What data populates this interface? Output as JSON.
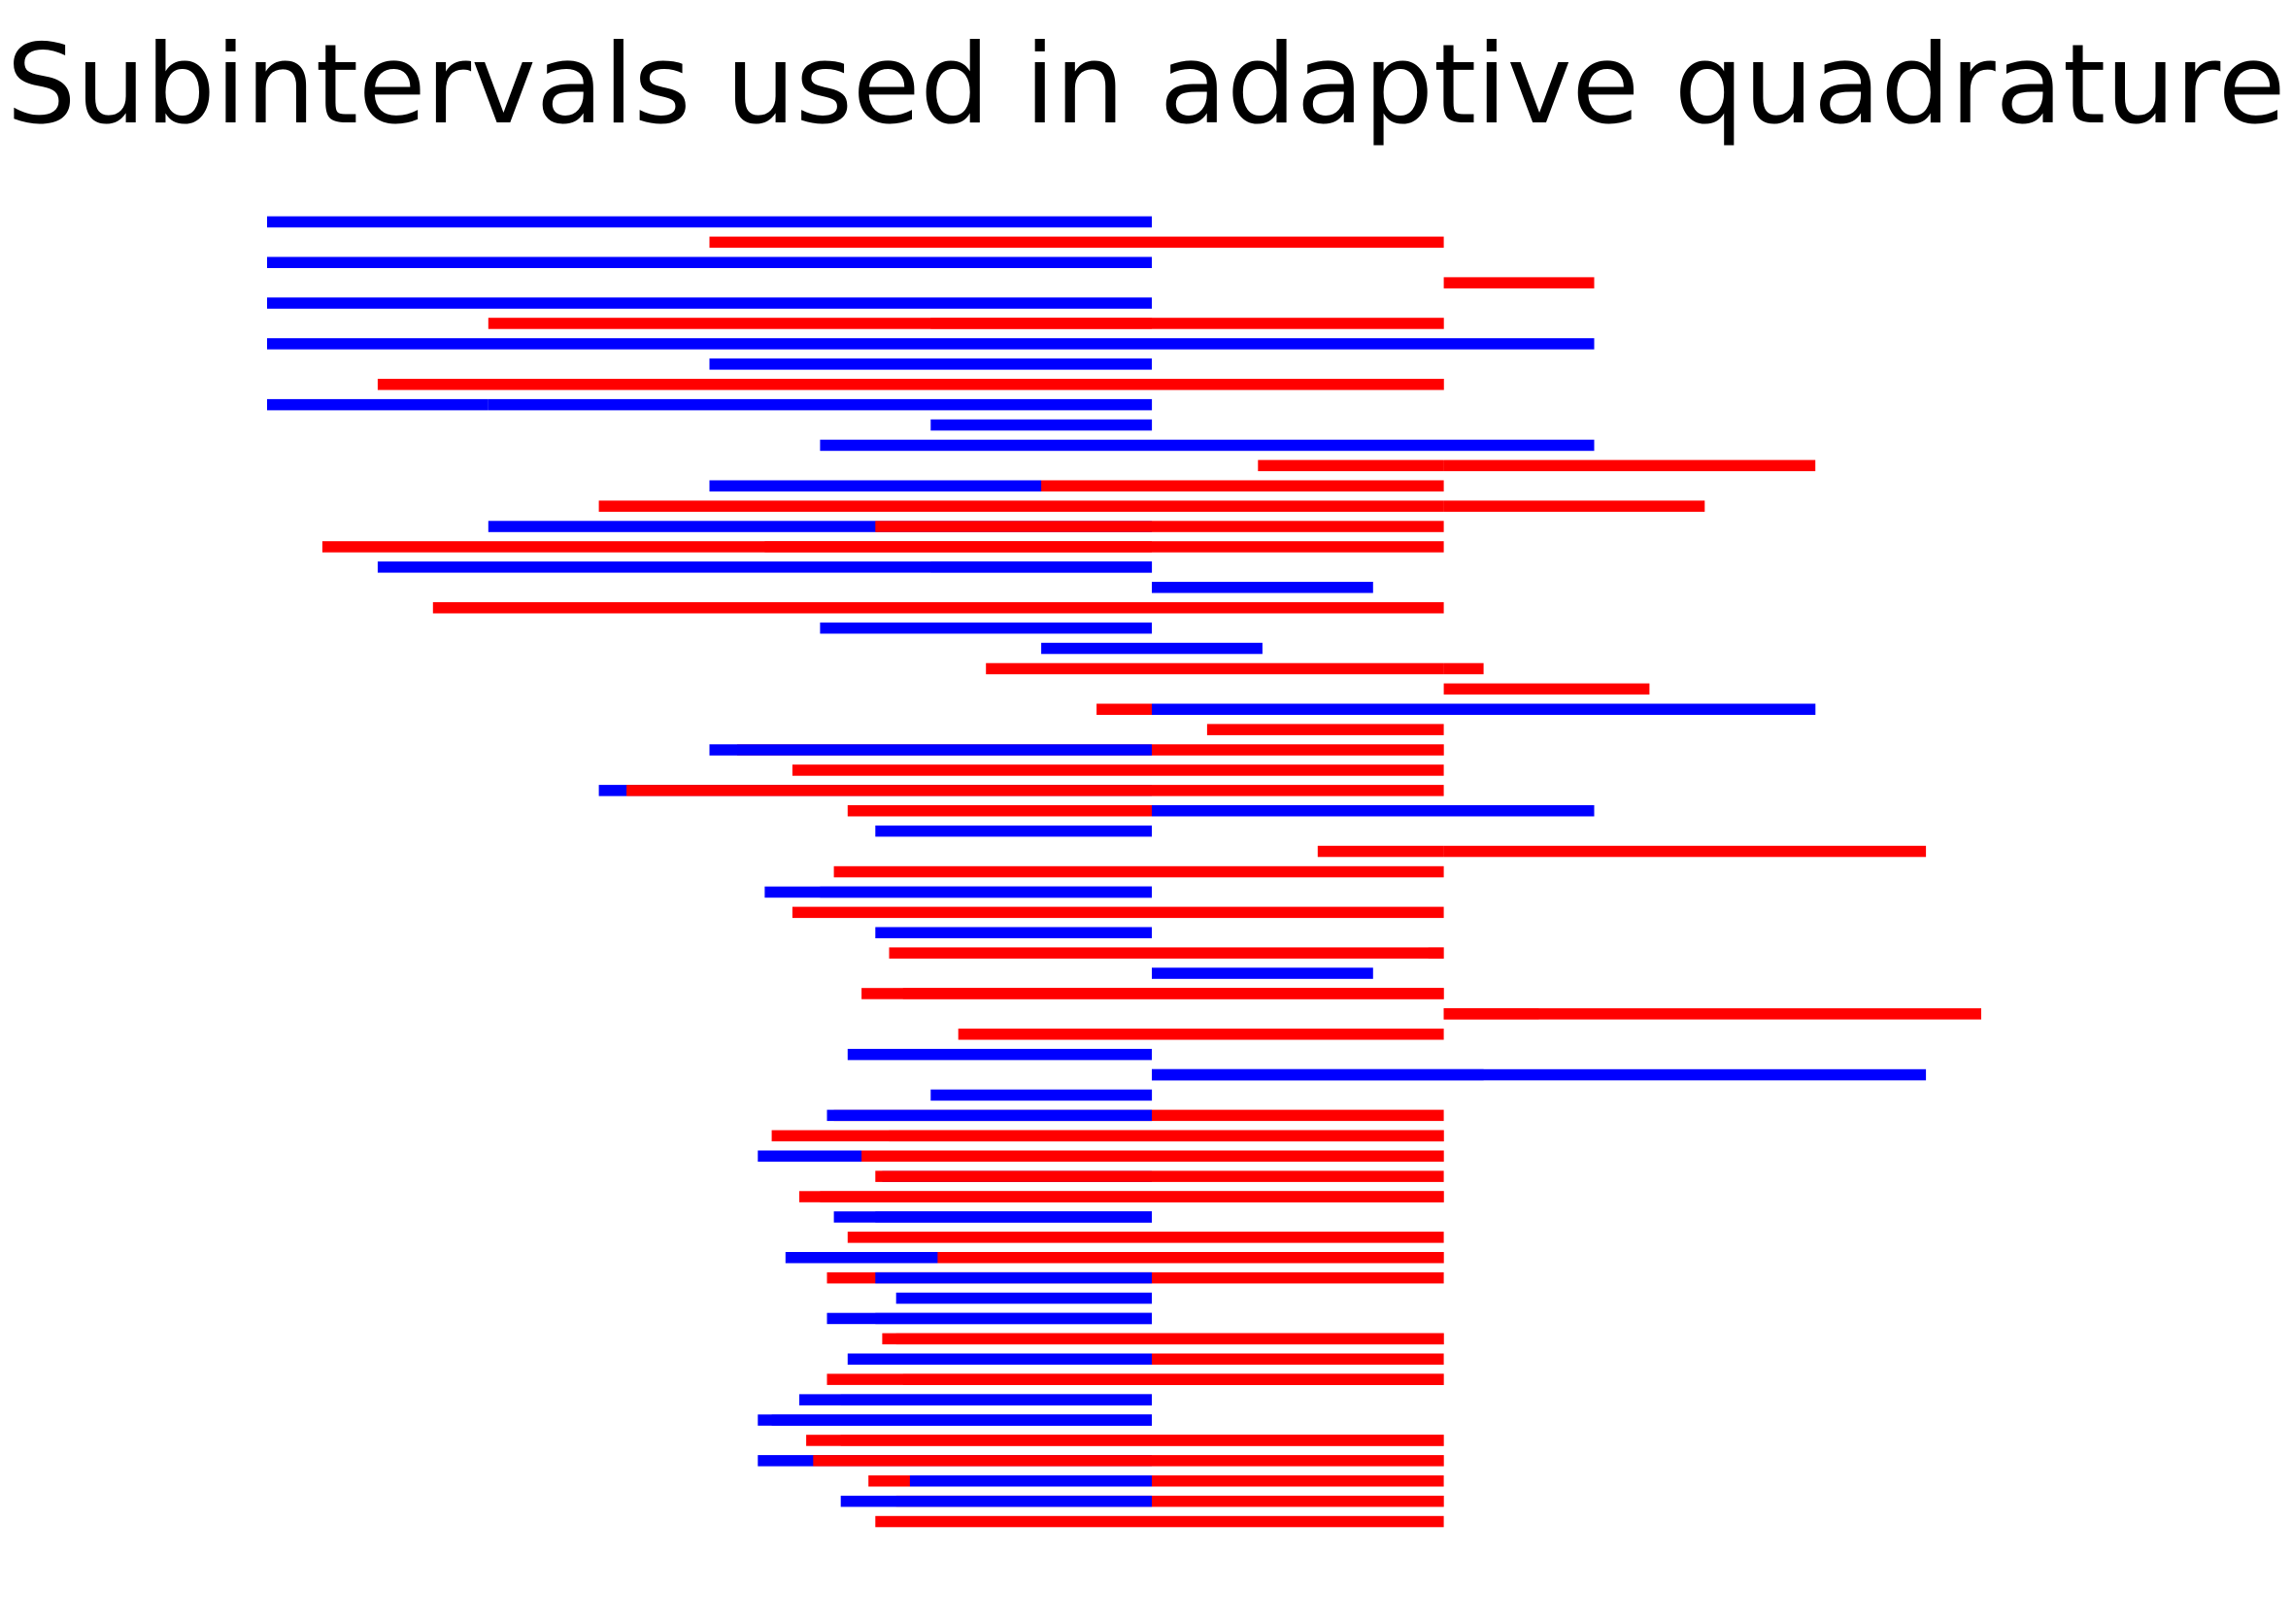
{
  "chart_data": {
    "type": "bar",
    "title": "Subintervals used in adaptive quadrature",
    "xlabel": "",
    "ylabel": "",
    "axes_visible": false,
    "grid": false,
    "colors": {
      "blue": "#0000ff",
      "red": "#ff0000"
    },
    "rows_total": 65,
    "segments": [
      {
        "row": 0,
        "start": -1.0,
        "end": 0.0,
        "color": "blue"
      },
      {
        "row": 1,
        "start": -0.5,
        "end": 0.0,
        "color": "red"
      },
      {
        "row": 1,
        "start": 0.0,
        "end": 0.33,
        "color": "red"
      },
      {
        "row": 2,
        "start": -1.0,
        "end": 0.0,
        "color": "blue"
      },
      {
        "row": 3,
        "start": 0.33,
        "end": 0.5,
        "color": "red"
      },
      {
        "row": 4,
        "start": -0.5,
        "end": 0.0,
        "color": "blue"
      },
      {
        "row": 4,
        "start": -1.0,
        "end": -0.5,
        "color": "blue"
      },
      {
        "row": 5,
        "start": -0.75,
        "end": 0.0,
        "color": "red"
      },
      {
        "row": 5,
        "start": -0.25,
        "end": 0.33,
        "color": "red"
      },
      {
        "row": 6,
        "start": -1.0,
        "end": 0.0,
        "color": "blue"
      },
      {
        "row": 6,
        "start": 0.0,
        "end": 0.5,
        "color": "blue"
      },
      {
        "row": 7,
        "start": -0.5,
        "end": 0.0,
        "color": "blue"
      },
      {
        "row": 8,
        "start": -0.875,
        "end": 0.0,
        "color": "red"
      },
      {
        "row": 8,
        "start": -0.375,
        "end": 0.33,
        "color": "red"
      },
      {
        "row": 8,
        "start": 0.24,
        "end": 0.33,
        "color": "red"
      },
      {
        "row": 9,
        "start": -0.75,
        "end": 0.0,
        "color": "blue"
      },
      {
        "row": 9,
        "start": -1.0,
        "end": -0.75,
        "color": "blue"
      },
      {
        "row": 10,
        "start": -0.25,
        "end": 0.0,
        "color": "blue"
      },
      {
        "row": 11,
        "start": -0.375,
        "end": 0.0,
        "color": "blue"
      },
      {
        "row": 11,
        "start": 0.0,
        "end": 0.5,
        "color": "blue"
      },
      {
        "row": 12,
        "start": 0.12,
        "end": 0.33,
        "color": "red"
      },
      {
        "row": 12,
        "start": 0.33,
        "end": 0.75,
        "color": "red"
      },
      {
        "row": 13,
        "start": -0.5,
        "end": 0.0,
        "color": "blue"
      },
      {
        "row": 13,
        "start": -0.125,
        "end": 0.33,
        "color": "red"
      },
      {
        "row": 14,
        "start": -0.625,
        "end": 0.33,
        "color": "red"
      },
      {
        "row": 14,
        "start": 0.33,
        "end": 0.625,
        "color": "red"
      },
      {
        "row": 15,
        "start": -0.75,
        "end": 0.0,
        "color": "blue"
      },
      {
        "row": 15,
        "start": -0.3125,
        "end": 0.33,
        "color": "red"
      },
      {
        "row": 16,
        "start": -0.9375,
        "end": 0.0,
        "color": "red"
      },
      {
        "row": 16,
        "start": -0.4375,
        "end": 0.33,
        "color": "red"
      },
      {
        "row": 17,
        "start": -0.875,
        "end": 0.0,
        "color": "blue"
      },
      {
        "row": 17,
        "start": -0.25,
        "end": 0.0,
        "color": "blue"
      },
      {
        "row": 18,
        "start": 0.0,
        "end": 0.25,
        "color": "blue"
      },
      {
        "row": 19,
        "start": -0.8125,
        "end": 0.0,
        "color": "red"
      },
      {
        "row": 19,
        "start": -0.6875,
        "end": 0.33,
        "color": "red"
      },
      {
        "row": 20,
        "start": -0.375,
        "end": 0.0,
        "color": "blue"
      },
      {
        "row": 21,
        "start": -0.125,
        "end": 0.0,
        "color": "blue"
      },
      {
        "row": 21,
        "start": 0.0,
        "end": 0.125,
        "color": "blue"
      },
      {
        "row": 22,
        "start": -0.1875,
        "end": 0.33,
        "color": "red"
      },
      {
        "row": 22,
        "start": 0.33,
        "end": 0.375,
        "color": "red"
      },
      {
        "row": 23,
        "start": 0.33,
        "end": 0.5625,
        "color": "red"
      },
      {
        "row": 24,
        "start": -0.0625,
        "end": 0.33,
        "color": "red"
      },
      {
        "row": 24,
        "start": 0.0,
        "end": 0.75,
        "color": "blue"
      },
      {
        "row": 25,
        "start": 0.0625,
        "end": 0.33,
        "color": "red"
      },
      {
        "row": 26,
        "start": -0.46875,
        "end": 0.33,
        "color": "red"
      },
      {
        "row": 26,
        "start": -0.5,
        "end": 0.0,
        "color": "blue"
      },
      {
        "row": 27,
        "start": -0.40625,
        "end": 0.33,
        "color": "red"
      },
      {
        "row": 28,
        "start": -0.625,
        "end": 0.0,
        "color": "blue"
      },
      {
        "row": 28,
        "start": -0.59375,
        "end": 0.33,
        "color": "red"
      },
      {
        "row": 29,
        "start": -0.34375,
        "end": 0.33,
        "color": "red"
      },
      {
        "row": 29,
        "start": 0.0,
        "end": 0.5,
        "color": "blue"
      },
      {
        "row": 30,
        "start": -0.3125,
        "end": 0.0,
        "color": "blue"
      },
      {
        "row": 31,
        "start": 0.33,
        "end": 0.875,
        "color": "red"
      },
      {
        "row": 31,
        "start": 0.1875,
        "end": 0.33,
        "color": "red"
      },
      {
        "row": 32,
        "start": -0.359375,
        "end": 0.33,
        "color": "red"
      },
      {
        "row": 33,
        "start": -0.4375,
        "end": 0.0,
        "color": "blue"
      },
      {
        "row": 33,
        "start": -0.375,
        "end": 0.0,
        "color": "blue"
      },
      {
        "row": 34,
        "start": -0.40625,
        "end": 0.33,
        "color": "red"
      },
      {
        "row": 35,
        "start": -0.3125,
        "end": 0.0,
        "color": "blue"
      },
      {
        "row": 36,
        "start": -0.296875,
        "end": 0.33,
        "color": "red"
      },
      {
        "row": 36,
        "start": 0.3125,
        "end": 0.33,
        "color": "red"
      },
      {
        "row": 37,
        "start": 0.0,
        "end": 0.25,
        "color": "blue"
      },
      {
        "row": 38,
        "start": -0.328125,
        "end": 0.33,
        "color": "red"
      },
      {
        "row": 38,
        "start": -0.28125,
        "end": 0.33,
        "color": "red"
      },
      {
        "row": 39,
        "start": 0.33,
        "end": 0.9375,
        "color": "red"
      },
      {
        "row": 39,
        "start": 0.33,
        "end": 0.4375,
        "color": "red"
      },
      {
        "row": 40,
        "start": -0.21875,
        "end": 0.33,
        "color": "red"
      },
      {
        "row": 41,
        "start": -0.34375,
        "end": 0.0,
        "color": "blue"
      },
      {
        "row": 42,
        "start": 0.0,
        "end": 0.875,
        "color": "blue"
      },
      {
        "row": 42,
        "start": 0.0,
        "end": 0.375,
        "color": "blue"
      },
      {
        "row": 43,
        "start": -0.25,
        "end": 0.0,
        "color": "blue"
      },
      {
        "row": 44,
        "start": -0.359375,
        "end": 0.33,
        "color": "red"
      },
      {
        "row": 44,
        "start": -0.3671875,
        "end": 0.0,
        "color": "blue"
      },
      {
        "row": 45,
        "start": -0.4296875,
        "end": 0.33,
        "color": "red"
      },
      {
        "row": 45,
        "start": -0.296875,
        "end": 0.33,
        "color": "red"
      },
      {
        "row": 46,
        "start": -0.4453125,
        "end": 0.0,
        "color": "blue"
      },
      {
        "row": 46,
        "start": -0.328125,
        "end": 0.33,
        "color": "red"
      },
      {
        "row": 47,
        "start": -0.3046875,
        "end": 0.0,
        "color": "blue"
      },
      {
        "row": 47,
        "start": -0.3125,
        "end": 0.33,
        "color": "red"
      },
      {
        "row": 48,
        "start": -0.375,
        "end": 0.33,
        "color": "red"
      },
      {
        "row": 48,
        "start": -0.3984375,
        "end": 0.33,
        "color": "red"
      },
      {
        "row": 49,
        "start": -0.359375,
        "end": 0.0,
        "color": "blue"
      },
      {
        "row": 49,
        "start": -0.3125,
        "end": 0.0,
        "color": "blue"
      },
      {
        "row": 50,
        "start": -0.34375,
        "end": 0.33,
        "color": "red"
      },
      {
        "row": 51,
        "start": -0.4140625,
        "end": 0.0,
        "color": "blue"
      },
      {
        "row": 51,
        "start": -0.2421875,
        "end": 0.33,
        "color": "red"
      },
      {
        "row": 52,
        "start": -0.3671875,
        "end": 0.33,
        "color": "red"
      },
      {
        "row": 52,
        "start": -0.3125,
        "end": 0.0,
        "color": "blue"
      },
      {
        "row": 53,
        "start": -0.2890625,
        "end": 0.0,
        "color": "blue"
      },
      {
        "row": 54,
        "start": -0.3671875,
        "end": 0.0,
        "color": "blue"
      },
      {
        "row": 54,
        "start": -0.3125,
        "end": 0.0,
        "color": "blue"
      },
      {
        "row": 55,
        "start": -0.2890625,
        "end": 0.33,
        "color": "red"
      },
      {
        "row": 55,
        "start": -0.3046875,
        "end": 0.33,
        "color": "red"
      },
      {
        "row": 56,
        "start": -0.3125,
        "end": 0.33,
        "color": "red"
      },
      {
        "row": 56,
        "start": -0.34375,
        "end": 0.0,
        "color": "blue"
      },
      {
        "row": 57,
        "start": -0.3671875,
        "end": 0.33,
        "color": "red"
      },
      {
        "row": 57,
        "start": -0.28125,
        "end": 0.33,
        "color": "red"
      },
      {
        "row": 58,
        "start": -0.3984375,
        "end": 0.0,
        "color": "blue"
      },
      {
        "row": 58,
        "start": -0.3515625,
        "end": 0.0,
        "color": "blue"
      },
      {
        "row": 59,
        "start": -0.4453125,
        "end": 0.0,
        "color": "blue"
      },
      {
        "row": 59,
        "start": -0.4296875,
        "end": 0.0,
        "color": "blue"
      },
      {
        "row": 60,
        "start": -0.3515625,
        "end": 0.33,
        "color": "red"
      },
      {
        "row": 60,
        "start": -0.390625,
        "end": 0.33,
        "color": "red"
      },
      {
        "row": 61,
        "start": -0.4453125,
        "end": 0.0,
        "color": "blue"
      },
      {
        "row": 61,
        "start": -0.3828125,
        "end": 0.33,
        "color": "red"
      },
      {
        "row": 62,
        "start": -0.3203125,
        "end": 0.33,
        "color": "red"
      },
      {
        "row": 62,
        "start": -0.2734375,
        "end": 0.0,
        "color": "blue"
      },
      {
        "row": 63,
        "start": -0.2890625,
        "end": 0.33,
        "color": "red"
      },
      {
        "row": 63,
        "start": -0.3515625,
        "end": 0.0,
        "color": "blue"
      },
      {
        "row": 64,
        "start": -0.3125,
        "end": 0.33,
        "color": "red"
      }
    ]
  }
}
